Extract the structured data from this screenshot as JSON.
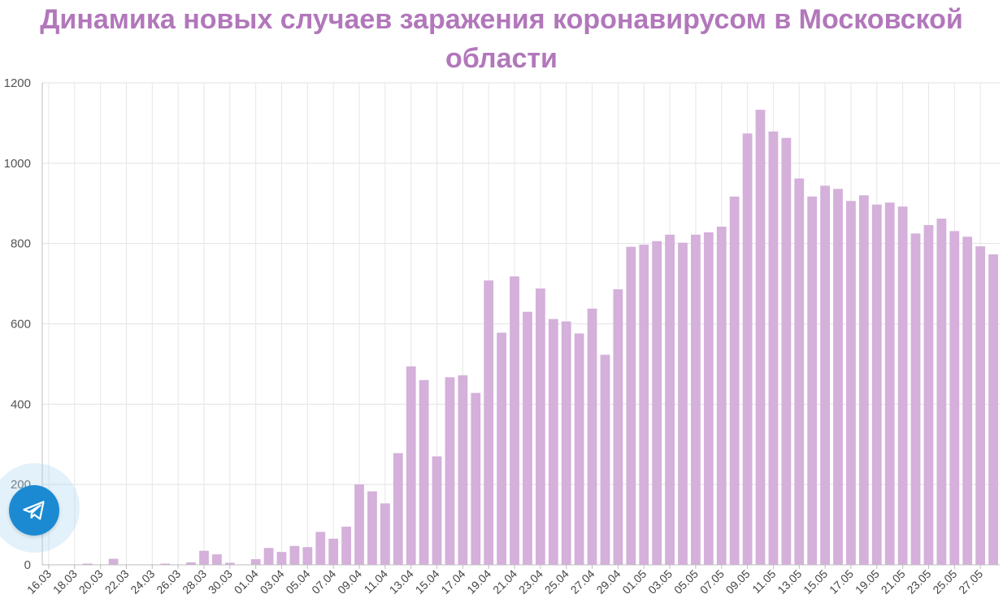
{
  "chart_data": {
    "type": "bar",
    "title": "Динамика новых случаев заражения коронавирусом в Московской области",
    "xlabel": "",
    "ylabel": "",
    "ylim": [
      0,
      1200
    ],
    "yticks": [
      "0",
      "200",
      "400",
      "600",
      "800",
      "1000",
      "1200"
    ],
    "grid": true,
    "bar_color": "#d4b0da",
    "title_color": "#b277bb",
    "categories": [
      "16.03",
      "17.03",
      "18.03",
      "19.03",
      "20.03",
      "21.03",
      "22.03",
      "23.03",
      "24.03",
      "25.03",
      "26.03",
      "27.03",
      "28.03",
      "29.03",
      "30.03",
      "31.03",
      "01.04",
      "02.04",
      "03.04",
      "04.04",
      "05.04",
      "06.04",
      "07.04",
      "08.04",
      "09.04",
      "10.04",
      "11.04",
      "12.04",
      "13.04",
      "14.04",
      "15.04",
      "16.04",
      "17.04",
      "18.04",
      "19.04",
      "20.04",
      "21.04",
      "22.04",
      "23.04",
      "24.04",
      "25.04",
      "26.04",
      "27.04",
      "28.04",
      "29.04",
      "30.04",
      "01.05",
      "02.05",
      "03.05",
      "04.05",
      "05.05",
      "06.05",
      "07.05",
      "08.05",
      "09.05",
      "10.05",
      "11.05",
      "12.05",
      "13.05",
      "14.05",
      "15.05",
      "16.05",
      "17.05",
      "18.05",
      "19.05",
      "20.05",
      "21.05",
      "22.05",
      "23.05",
      "24.05",
      "25.05",
      "26.05",
      "27.05",
      "28.05"
    ],
    "xtick_labels": [
      "16.03",
      "18.03",
      "20.03",
      "22.03",
      "24.03",
      "26.03",
      "28.03",
      "30.03",
      "01.04",
      "03.04",
      "05.04",
      "07.04",
      "09.04",
      "11.04",
      "13.04",
      "15.04",
      "17.04",
      "19.04",
      "21.04",
      "23.04",
      "25.04",
      "27.04",
      "29.04",
      "01.05",
      "03.05",
      "05.05",
      "07.05",
      "09.05",
      "11.05",
      "13.05",
      "15.05",
      "17.05",
      "19.05",
      "21.05",
      "23.05",
      "25.05",
      "27.05"
    ],
    "values": [
      1,
      1,
      0,
      3,
      0,
      15,
      0,
      0,
      0,
      3,
      0,
      6,
      35,
      26,
      5,
      0,
      14,
      42,
      32,
      47,
      44,
      82,
      65,
      95,
      200,
      183,
      153,
      278,
      494,
      460,
      270,
      467,
      472,
      428,
      708,
      578,
      718,
      630,
      688,
      612,
      606,
      576,
      638,
      523,
      686,
      792,
      797,
      806,
      822,
      802,
      822,
      828,
      842,
      917,
      1074,
      1133,
      1079,
      1063,
      962,
      917,
      944,
      936,
      906,
      920,
      897,
      902,
      892,
      825,
      846,
      862,
      831,
      817,
      793,
      773
    ]
  },
  "floating_button": {
    "icon": "telegram-icon",
    "color": "#1b8ad3"
  }
}
